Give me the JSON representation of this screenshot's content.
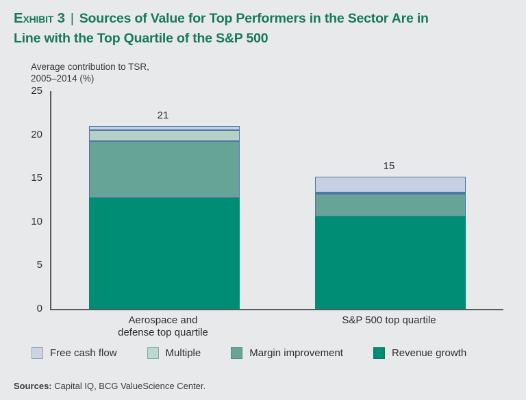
{
  "title": {
    "exhibit_label": "Exhibit 3",
    "separator": "|",
    "line1": "Sources of Value for Top Performers in the Sector Are in",
    "line2": "Line with the Top Quartile of the S&P 500"
  },
  "subtitle": {
    "line1": "Average contribution to TSR,",
    "line2": "2005–2014 (%)"
  },
  "chart_data": {
    "type": "bar",
    "stacked": true,
    "title": "Sources of Value for Top Performers in the Sector Are in Line with the Top Quartile of the S&P 500",
    "ylabel": "Average contribution to TSR, 2005–2014 (%)",
    "xlabel": "",
    "ylim": [
      0,
      25
    ],
    "yticks": [
      0,
      5,
      10,
      15,
      20,
      25
    ],
    "grid": false,
    "legend_position": "bottom",
    "categories": [
      [
        "Aerospace and",
        "defense top quartile"
      ],
      [
        "S&P 500 top quartile"
      ]
    ],
    "series": [
      {
        "name": "Revenue growth",
        "values": [
          12.7,
          10.6
        ],
        "color": "#008d75",
        "border_color": null
      },
      {
        "name": "Margin improvement",
        "values": [
          6.6,
          2.6
        ],
        "color": "#66a497",
        "border_color": "#4e76a0"
      },
      {
        "name": "Multiple",
        "values": [
          1.2,
          0.2
        ],
        "color": "#b4d1c8",
        "border_color": "#4e76a0"
      },
      {
        "name": "Free cash flow",
        "values": [
          0.5,
          1.8
        ],
        "color": "#c7d0e2",
        "border_color": "#4e76a0"
      }
    ],
    "totals": [
      21,
      15
    ],
    "total_labels": [
      "21",
      "15"
    ]
  },
  "legend": {
    "items": [
      {
        "label": "Free cash flow",
        "color": "#ccd4e4",
        "border": "#8aa3c0"
      },
      {
        "label": "Multiple",
        "color": "#bdd8cf",
        "border": "#7fae9f"
      },
      {
        "label": "Margin improvement",
        "color": "#68a497",
        "border": "#4f8d7f"
      },
      {
        "label": "Revenue growth",
        "color": "#008d75",
        "border": "#007a66"
      }
    ]
  },
  "footer": {
    "sources_label": "Sources:",
    "sources_text": "Capital IQ, BCG ValueScience Center."
  },
  "colors": {
    "background": "#e8e9ea",
    "title_green": "#17795a",
    "axis": "#595a5d",
    "text": "#2e2e30"
  }
}
